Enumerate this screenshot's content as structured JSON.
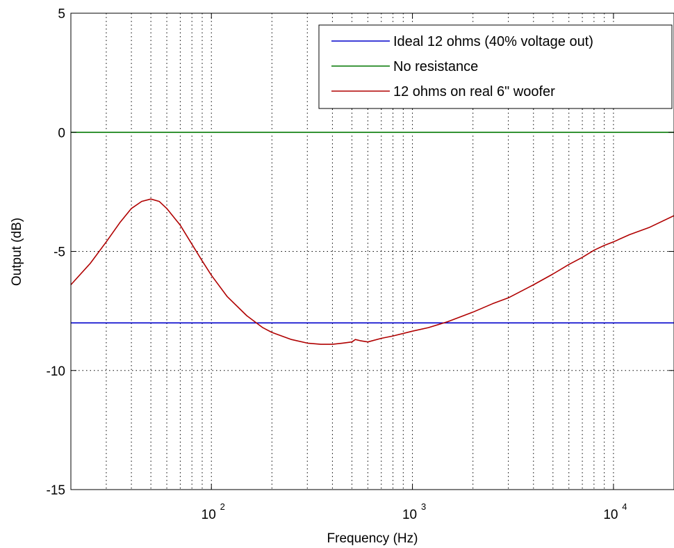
{
  "chart_data": {
    "type": "line",
    "title": "",
    "xlabel": "Frequency (Hz)",
    "ylabel": "Output (dB)",
    "x_scale": "log",
    "xlim": [
      20,
      20000
    ],
    "ylim": [
      -15,
      5
    ],
    "grid": true,
    "legend_position": "top-right",
    "x_ticks": [
      {
        "value": 100,
        "base": "10",
        "exp": "2"
      },
      {
        "value": 1000,
        "base": "10",
        "exp": "3"
      },
      {
        "value": 10000,
        "base": "10",
        "exp": "4"
      }
    ],
    "y_ticks": [
      {
        "value": 5,
        "label": "5"
      },
      {
        "value": 0,
        "label": "0"
      },
      {
        "value": -5,
        "label": "-5"
      },
      {
        "value": -10,
        "label": "-10"
      },
      {
        "value": -15,
        "label": "-15"
      }
    ],
    "series": [
      {
        "name": "Ideal 12 ohms (40% voltage out)",
        "color": "#0000cc",
        "x": [
          20,
          20000
        ],
        "y": [
          -8,
          -8
        ]
      },
      {
        "name": "No resistance",
        "color": "#007700",
        "x": [
          20,
          20000
        ],
        "y": [
          0,
          0
        ]
      },
      {
        "name": "12 ohms on real 6\" woofer",
        "color": "#b00000",
        "x": [
          20,
          25,
          30,
          35,
          40,
          45,
          50,
          55,
          60,
          70,
          80,
          90,
          100,
          120,
          150,
          180,
          200,
          250,
          300,
          350,
          400,
          450,
          500,
          520,
          550,
          600,
          700,
          800,
          1000,
          1200,
          1500,
          2000,
          2500,
          3000,
          4000,
          5000,
          6000,
          7000,
          8000,
          9000,
          10000,
          12000,
          15000,
          20000
        ],
        "y": [
          -6.4,
          -5.5,
          -4.6,
          -3.8,
          -3.2,
          -2.9,
          -2.8,
          -2.9,
          -3.2,
          -3.9,
          -4.7,
          -5.4,
          -6.0,
          -6.9,
          -7.7,
          -8.2,
          -8.4,
          -8.7,
          -8.85,
          -8.9,
          -8.9,
          -8.85,
          -8.8,
          -8.7,
          -8.75,
          -8.8,
          -8.65,
          -8.55,
          -8.35,
          -8.2,
          -7.95,
          -7.55,
          -7.2,
          -6.95,
          -6.4,
          -5.95,
          -5.55,
          -5.25,
          -4.95,
          -4.75,
          -4.6,
          -4.3,
          -4.0,
          -3.5
        ]
      }
    ]
  }
}
